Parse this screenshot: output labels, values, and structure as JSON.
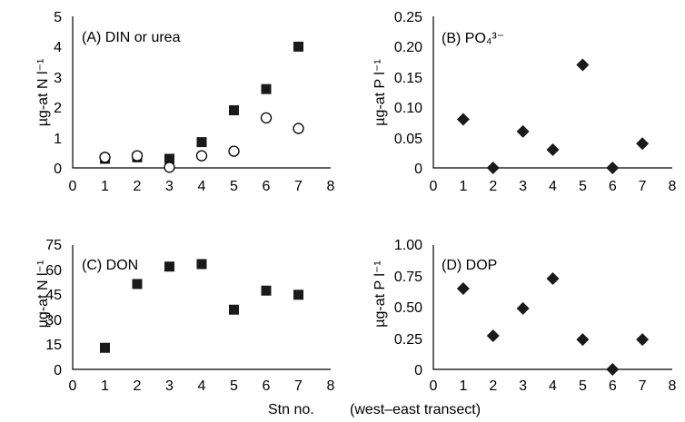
{
  "figure": {
    "xlabel_main": "Stn no.",
    "xlabel_sub": "(west–east transect)"
  },
  "chart_data": [
    {
      "type": "scatter",
      "panel_label": "(A)  DIN or urea",
      "ylabel": "µg-at N l⁻¹",
      "xlim": [
        0,
        8
      ],
      "ylim": [
        0,
        5
      ],
      "xticks": [
        "0",
        "1",
        "2",
        "3",
        "4",
        "5",
        "6",
        "7",
        "8"
      ],
      "yticks": [
        "0",
        "1",
        "2",
        "3",
        "4",
        "5"
      ],
      "series": [
        {
          "marker": "filled-square",
          "x": [
            1,
            2,
            3,
            4,
            5,
            6,
            7
          ],
          "values": [
            0.3,
            0.35,
            0.3,
            0.85,
            1.9,
            2.6,
            4.0
          ]
        },
        {
          "marker": "open-circle",
          "x": [
            1,
            2,
            3,
            4,
            5,
            6,
            7
          ],
          "values": [
            0.35,
            0.4,
            0.02,
            0.4,
            0.55,
            1.65,
            1.3
          ]
        }
      ]
    },
    {
      "type": "scatter",
      "panel_label": "(B)   PO₄³⁻",
      "ylabel": "µg-at P l⁻¹",
      "xlim": [
        0,
        8
      ],
      "ylim": [
        0,
        0.25
      ],
      "xticks": [
        "0",
        "1",
        "2",
        "3",
        "4",
        "5",
        "6",
        "7",
        "8"
      ],
      "yticks": [
        "0",
        "0.05",
        "0.10",
        "0.15",
        "0.20",
        "0.25"
      ],
      "series": [
        {
          "marker": "filled-diamond",
          "x": [
            1,
            2,
            3,
            4,
            5,
            6,
            7
          ],
          "values": [
            0.08,
            0.0,
            0.06,
            0.03,
            0.17,
            0.0,
            0.04
          ]
        }
      ]
    },
    {
      "type": "scatter",
      "panel_label": "(C) DON",
      "ylabel": "µg-at N l⁻¹",
      "xlim": [
        0,
        8
      ],
      "ylim": [
        0,
        75
      ],
      "xticks": [
        "0",
        "1",
        "2",
        "3",
        "4",
        "5",
        "6",
        "7",
        "8"
      ],
      "yticks": [
        "0",
        "15",
        "30",
        "45",
        "60",
        "75"
      ],
      "series": [
        {
          "marker": "filled-square",
          "x": [
            1,
            2,
            3,
            4,
            5,
            6,
            7
          ],
          "values": [
            13,
            51.5,
            62,
            63.5,
            36,
            47.5,
            45
          ]
        }
      ]
    },
    {
      "type": "scatter",
      "panel_label": "(D)   DOP",
      "ylabel": "µg-at P l⁻¹",
      "xlim": [
        0,
        8
      ],
      "ylim": [
        0,
        1.0
      ],
      "xticks": [
        "0",
        "1",
        "2",
        "3",
        "4",
        "5",
        "6",
        "7",
        "8"
      ],
      "yticks": [
        "0",
        "0.25",
        "0.50",
        "0.75",
        "1.00"
      ],
      "series": [
        {
          "marker": "filled-diamond",
          "x": [
            1,
            2,
            3,
            4,
            5,
            6,
            7
          ],
          "values": [
            0.65,
            0.27,
            0.49,
            0.73,
            0.24,
            0.0,
            0.24
          ]
        }
      ]
    }
  ]
}
